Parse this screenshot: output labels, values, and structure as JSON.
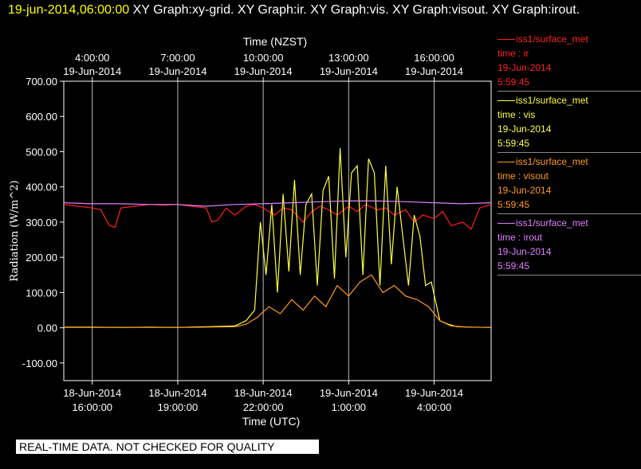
{
  "header": {
    "timestamp": "19-jun-2014,06:00:00",
    "graphs": "XY Graph:xy-grid.  XY Graph:ir.  XY Graph:vis.  XY Graph:visout.  XY Graph:irout."
  },
  "disclaimer": "REAL-TIME DATA. NOT CHECKED FOR QUALITY",
  "legend": [
    {
      "source": "iss1/surface_met",
      "variable": "time : ir",
      "date": "19-Jun-2014",
      "time": "5:59:45",
      "color": "#ff2020"
    },
    {
      "source": "iss1/surface_met",
      "variable": "time : vis",
      "date": "19-Jun-2014",
      "time": "5:59:45",
      "color": "#ffff40"
    },
    {
      "source": "iss1/surface_met",
      "variable": "time : visout",
      "date": "19-Jun-2014",
      "time": "5:59:45",
      "color": "#ff9a20"
    },
    {
      "source": "iss1/surface_met",
      "variable": "time : irout",
      "date": "19-Jun-2014",
      "time": "5:59:45",
      "color": "#e080ff"
    }
  ],
  "chart_data": {
    "type": "line",
    "xlabel": "Time (UTC)",
    "x2label": "Time (NZST)",
    "ylabel": "Radiation  (W/m^2)",
    "xlim_hours_utc": [
      -9,
      6
    ],
    "ylim": [
      -150,
      700
    ],
    "yticks": [
      "-100.00",
      "0.00",
      "100.00",
      "200.00",
      "300.00",
      "400.00",
      "500.00",
      "600.00",
      "700.00"
    ],
    "xticks_bottom": [
      {
        "date": "18-Jun-2014",
        "time": "16:00:00",
        "hour": -8
      },
      {
        "date": "18-Jun-2014",
        "time": "19:00:00",
        "hour": -5
      },
      {
        "date": "18-Jun-2014",
        "time": "22:00:00",
        "hour": -2
      },
      {
        "date": "19-Jun-2014",
        "time": "1:00:00",
        "hour": 1
      },
      {
        "date": "19-Jun-2014",
        "time": "4:00:00",
        "hour": 4
      }
    ],
    "xticks_top": [
      {
        "time": "4:00:00",
        "date": "19-Jun-2014",
        "hour": -8
      },
      {
        "time": "7:00:00",
        "date": "19-Jun-2014",
        "hour": -5
      },
      {
        "time": "10:00:00",
        "date": "19-Jun-2014",
        "hour": -2
      },
      {
        "time": "13:00:00",
        "date": "19-Jun-2014",
        "hour": 1
      },
      {
        "time": "16:00:00",
        "date": "19-Jun-2014",
        "hour": 4
      }
    ],
    "grid": true,
    "series": [
      {
        "name": "ir",
        "color": "#ff2020",
        "x": [
          -9,
          -8.5,
          -8,
          -7.7,
          -7.4,
          -7.2,
          -7,
          -6.5,
          -6,
          -5.5,
          -5,
          -4.5,
          -4,
          -3.8,
          -3.6,
          -3.3,
          -3,
          -2.6,
          -2.3,
          -2,
          -1.6,
          -1.3,
          -1,
          -0.6,
          -0.3,
          0,
          0.3,
          0.6,
          1,
          1.3,
          1.6,
          2,
          2.3,
          2.6,
          3,
          3.3,
          3.6,
          4,
          4.3,
          4.6,
          5,
          5.3,
          5.6,
          6
        ],
        "y": [
          350,
          345,
          340,
          335,
          290,
          285,
          340,
          345,
          350,
          348,
          350,
          345,
          340,
          300,
          305,
          340,
          320,
          345,
          350,
          340,
          320,
          340,
          335,
          300,
          330,
          345,
          335,
          320,
          345,
          330,
          350,
          335,
          340,
          320,
          335,
          300,
          320,
          310,
          330,
          290,
          300,
          280,
          340,
          350
        ]
      },
      {
        "name": "vis",
        "color": "#ffff40",
        "x": [
          -9,
          -8,
          -7,
          -6,
          -5,
          -4,
          -3,
          -2.6,
          -2.3,
          -2.1,
          -1.9,
          -1.7,
          -1.5,
          -1.3,
          -1.1,
          -0.9,
          -0.7,
          -0.5,
          -0.3,
          -0.1,
          0.1,
          0.3,
          0.5,
          0.7,
          0.9,
          1.1,
          1.3,
          1.5,
          1.7,
          1.9,
          2.1,
          2.3,
          2.5,
          2.7,
          2.9,
          3.1,
          3.3,
          3.5,
          3.7,
          3.9,
          4.2,
          4.5,
          4.8,
          5.2,
          6
        ],
        "y": [
          2,
          2,
          1,
          2,
          1,
          3,
          5,
          20,
          50,
          300,
          150,
          350,
          100,
          380,
          160,
          420,
          150,
          350,
          380,
          120,
          390,
          430,
          140,
          510,
          200,
          440,
          460,
          150,
          480,
          440,
          120,
          460,
          180,
          400,
          260,
          120,
          320,
          260,
          120,
          130,
          20,
          10,
          3,
          2,
          1
        ]
      },
      {
        "name": "visout",
        "color": "#ff9a20",
        "x": [
          -9,
          -8,
          -7,
          -6,
          -5,
          -4,
          -3,
          -2.6,
          -2.2,
          -1.8,
          -1.4,
          -1,
          -0.6,
          -0.2,
          0.2,
          0.6,
          1,
          1.4,
          1.8,
          2.2,
          2.6,
          3,
          3.4,
          3.8,
          4.2,
          4.6,
          5.2,
          6
        ],
        "y": [
          1,
          1,
          1,
          1,
          1,
          2,
          3,
          10,
          30,
          60,
          40,
          80,
          50,
          90,
          60,
          120,
          90,
          130,
          150,
          100,
          120,
          90,
          80,
          60,
          20,
          5,
          2,
          1
        ]
      },
      {
        "name": "irout",
        "color": "#e080ff",
        "x": [
          -9,
          -8,
          -7,
          -6,
          -5,
          -4,
          -3,
          -2,
          -1,
          0,
          1,
          2,
          3,
          4,
          5,
          6
        ],
        "y": [
          355,
          352,
          352,
          350,
          350,
          345,
          350,
          352,
          355,
          358,
          360,
          360,
          358,
          355,
          352,
          355
        ]
      }
    ]
  }
}
